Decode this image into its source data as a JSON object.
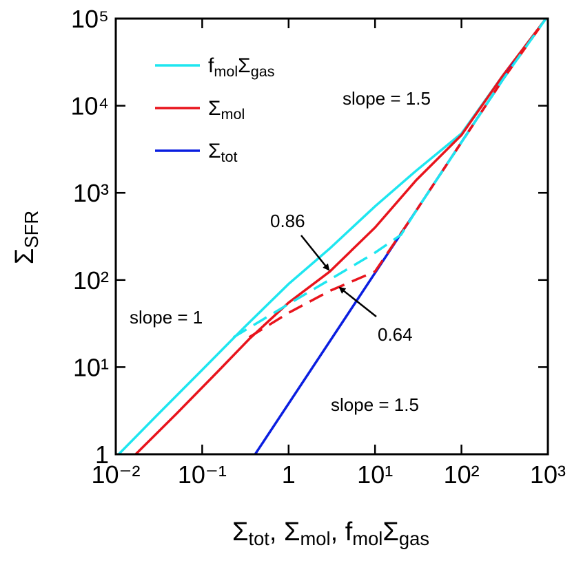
{
  "chart_data": {
    "type": "line",
    "x_label": [
      "Σ",
      "tot",
      ", Σ",
      "mol",
      ", f",
      "mol",
      "Σ",
      "gas"
    ],
    "y_label": [
      "Σ",
      "SFR"
    ],
    "xscale": "log",
    "yscale": "log",
    "xlim": [
      0.01,
      1000
    ],
    "ylim": [
      1,
      100000
    ],
    "xticks": [
      {
        "value": 0.01,
        "label": "10⁻²"
      },
      {
        "value": 0.1,
        "label": "10⁻¹"
      },
      1,
      {
        "value": 10,
        "label": "10¹"
      },
      {
        "value": 100,
        "label": "10²"
      },
      {
        "value": 1000,
        "label": "10³"
      }
    ],
    "yticks": [
      1,
      {
        "value": 10,
        "label": "10¹"
      },
      {
        "value": 100,
        "label": "10²"
      },
      {
        "value": 1000,
        "label": "10³"
      },
      {
        "value": 10000,
        "label": "10⁴"
      },
      {
        "value": 100000,
        "label": "10⁵"
      }
    ],
    "legend": "upper left",
    "series": [
      {
        "name": [
          "f",
          "mol",
          "Σ",
          "gas"
        ],
        "color": "#1ee6f0",
        "dashed": false,
        "x": [
          0.0108,
          0.03,
          0.1,
          0.3,
          1,
          3,
          10,
          30,
          100,
          300,
          950
        ],
        "values": [
          1,
          2.8,
          9.3,
          28,
          90,
          230,
          700,
          1800,
          4800,
          22000,
          100000
        ]
      },
      {
        "name": [
          "Σ",
          "mol"
        ],
        "color": "#e8141c",
        "dashed": false,
        "x": [
          0.017,
          0.05,
          0.15,
          0.35,
          1,
          3,
          10,
          30,
          100,
          300,
          950
        ],
        "values": [
          1,
          2.9,
          8.8,
          21,
          55,
          125,
          400,
          1400,
          4600,
          22000,
          100000
        ]
      },
      {
        "name": [
          "Σ",
          "tot"
        ],
        "color": "#0a1ee0",
        "dashed": false,
        "x": [
          0.41,
          4.1,
          41,
          410
        ],
        "values": [
          1,
          31.6,
          1000,
          31600
        ]
      },
      {
        "color": "#e8141c",
        "dashed": true,
        "x": [
          0.35,
          1,
          3,
          10,
          30,
          100,
          300,
          950
        ],
        "values": [
          22,
          42,
          75,
          125,
          626,
          3800,
          19800,
          100000
        ]
      },
      {
        "color": "#1ee6f0",
        "dashed": true,
        "x": [
          0.23,
          1,
          3,
          10,
          20,
          30,
          100,
          300,
          950
        ],
        "values": [
          22,
          53,
          101,
          206,
          330,
          626,
          3800,
          19800,
          100000
        ]
      }
    ],
    "annotations": [
      "slope = 1.5",
      "slope = 1",
      "slope = 1.5",
      "0.86",
      "0.64"
    ]
  }
}
